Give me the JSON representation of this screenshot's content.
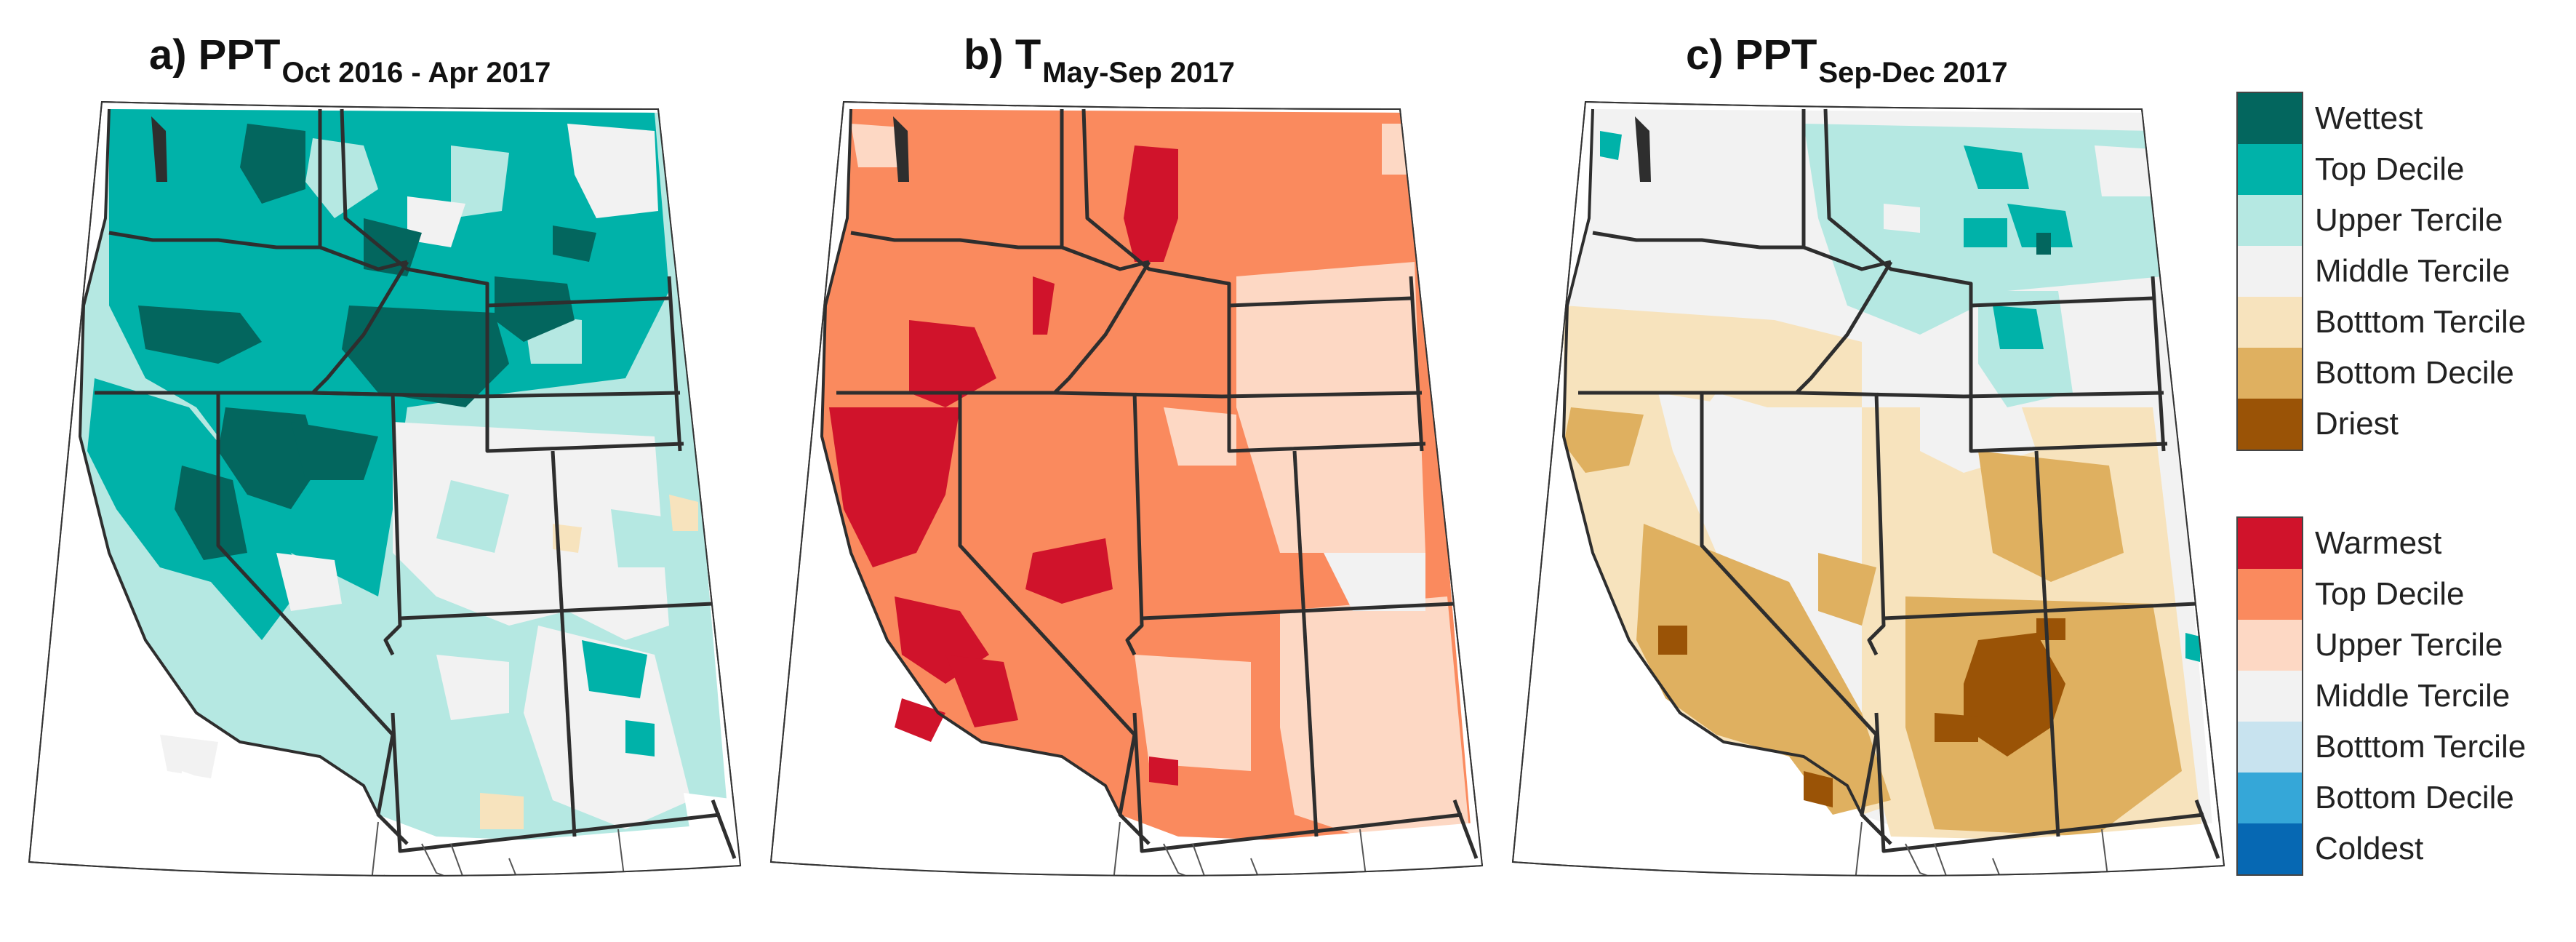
{
  "panels": [
    {
      "letter_var": "a) PPT",
      "subscript": "Oct 2016 - Apr 2017"
    },
    {
      "letter_var": "b) T",
      "subscript": "May-Sep 2017"
    },
    {
      "letter_var": "c) PPT",
      "subscript": "Sep-Dec 2017"
    }
  ],
  "legend_precip": [
    {
      "label": "Wettest",
      "color": "#03665e"
    },
    {
      "label": "Top Decile",
      "color": "#00b2a9"
    },
    {
      "label": "Upper Tercile",
      "color": "#b5e8e2"
    },
    {
      "label": "Middle Tercile",
      "color": "#f2f2f2"
    },
    {
      "label": "Botttom Tercile",
      "color": "#f7e3bd"
    },
    {
      "label": "Bottom Decile",
      "color": "#dfb060"
    },
    {
      "label": "Driest",
      "color": "#9a5306"
    }
  ],
  "legend_temp": [
    {
      "label": "Warmest",
      "color": "#d0132b"
    },
    {
      "label": "Top Decile",
      "color": "#fa8a5e"
    },
    {
      "label": "Upper Tercile",
      "color": "#fdd8c4"
    },
    {
      "label": "Middle Tercile",
      "color": "#f2f2f2"
    },
    {
      "label": "Botttom Tercile",
      "color": "#c8e3ef"
    },
    {
      "label": "Bottom Decile",
      "color": "#35a7d8"
    },
    {
      "label": "Coldest",
      "color": "#0668b3"
    }
  ]
}
